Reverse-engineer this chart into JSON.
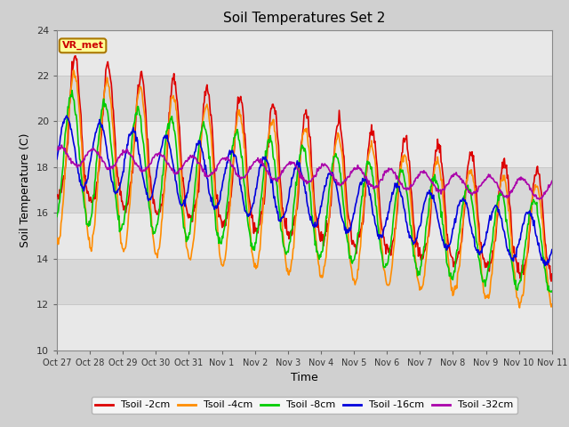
{
  "title": "Soil Temperatures Set 2",
  "xlabel": "Time",
  "ylabel": "Soil Temperature (C)",
  "ylim": [
    10,
    24
  ],
  "yticks": [
    10,
    12,
    14,
    16,
    18,
    20,
    22,
    24
  ],
  "xtick_labels": [
    "Oct 27",
    "Oct 28",
    "Oct 29",
    "Oct 30",
    "Oct 31",
    "Nov 1",
    "Nov 2",
    "Nov 3",
    "Nov 4",
    "Nov 5",
    "Nov 6",
    "Nov 7",
    "Nov 8",
    "Nov 9",
    "Nov 10",
    "Nov 11"
  ],
  "label_box": {
    "text": "VR_met",
    "facecolor": "#ffff99",
    "edgecolor": "#aa7700",
    "textcolor": "#cc0000"
  },
  "series_colors": [
    "#dd0000",
    "#ff8c00",
    "#00cc00",
    "#0000dd",
    "#aa00aa"
  ],
  "series_labels": [
    "Tsoil -2cm",
    "Tsoil -4cm",
    "Tsoil -8cm",
    "Tsoil -16cm",
    "Tsoil -32cm"
  ],
  "band_colors": [
    "#e8e8e8",
    "#d8d8d8"
  ],
  "grid_color": "#c8c8c8",
  "fig_bg": "#d0d0d0"
}
